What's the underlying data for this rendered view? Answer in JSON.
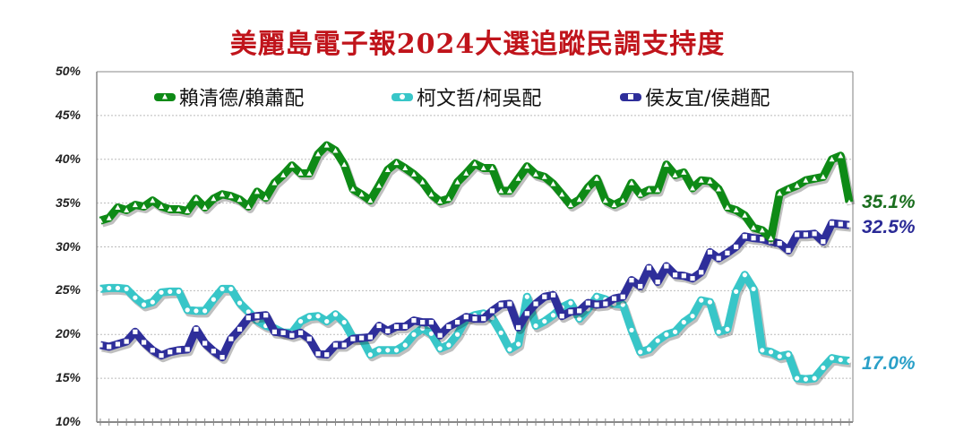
{
  "title": "美麗島電子報2024大選追蹤民調支持度",
  "legend": [
    {
      "label": "賴清德/賴蕭配",
      "color": "#0e8a16",
      "marker": "triangle"
    },
    {
      "label": "柯文哲/柯吳配",
      "color": "#38c6c8",
      "marker": "circle"
    },
    {
      "label": "侯友宜/侯趙配",
      "color": "#2e2e9a",
      "marker": "square"
    }
  ],
  "end_labels": {
    "lai": "35.1%",
    "ko": "17.0%",
    "hou": "32.5%"
  },
  "y_ticks": [
    "50%",
    "45%",
    "40%",
    "35%",
    "30%",
    "25%",
    "20%",
    "15%",
    "10%"
  ],
  "chart_data": {
    "type": "line",
    "title": "美麗島電子報2024大選追蹤民調支持度",
    "xlabel": "",
    "ylabel": "",
    "ylim": [
      10,
      50
    ],
    "y_ticks": [
      10,
      15,
      20,
      25,
      30,
      35,
      40,
      45,
      50
    ],
    "grid": true,
    "legend_position": "top",
    "x_count": 87,
    "series": [
      {
        "name": "賴清德/賴蕭配",
        "color": "#0e8a16",
        "values": [
          33.0,
          33.3,
          34.5,
          34.2,
          34.8,
          34.6,
          35.3,
          34.6,
          34.3,
          34.3,
          34.1,
          35.5,
          34.5,
          35.5,
          36.0,
          35.8,
          35.4,
          34.6,
          36.3,
          35.6,
          37.3,
          38.2,
          39.3,
          38.4,
          38.4,
          40.6,
          41.6,
          41.0,
          39.4,
          36.6,
          36.0,
          35.3,
          37.0,
          38.8,
          39.6,
          39.0,
          38.3,
          37.4,
          36.0,
          35.2,
          35.5,
          37.4,
          38.4,
          39.5,
          39.0,
          39.0,
          36.4,
          36.4,
          37.8,
          39.2,
          38.3,
          38.0,
          37.2,
          36.0,
          34.8,
          35.4,
          36.8,
          37.8,
          35.3,
          34.8,
          35.3,
          37.3,
          36.0,
          36.5,
          36.5,
          39.4,
          38.2,
          38.5,
          36.7,
          37.6,
          37.5,
          36.6,
          34.5,
          34.2,
          33.6,
          32.2,
          31.9,
          31.0,
          36.1,
          36.6,
          37.0,
          37.6,
          37.8,
          38.0,
          40.0,
          40.4,
          35.1
        ]
      },
      {
        "name": "柯文哲/柯吳配",
        "color": "#38c6c8",
        "values": [
          25.2,
          25.3,
          25.3,
          25.2,
          24.2,
          23.4,
          23.7,
          24.8,
          24.9,
          24.9,
          22.8,
          22.7,
          22.7,
          24.0,
          25.2,
          25.2,
          23.6,
          22.6,
          21.6,
          21.0,
          20.7,
          20.2,
          20.2,
          21.5,
          22.0,
          22.1,
          21.5,
          22.3,
          21.4,
          19.6,
          19.6,
          17.7,
          18.2,
          18.2,
          18.2,
          18.8,
          20.0,
          20.7,
          20.1,
          18.4,
          18.8,
          20.0,
          21.8,
          22.2,
          22.4,
          21.9,
          20.2,
          18.3,
          18.9,
          24.3,
          21.0,
          21.5,
          22.2,
          23.1,
          23.6,
          21.8,
          22.9,
          24.3,
          24.0,
          23.5,
          23.4,
          20.5,
          18.0,
          18.3,
          19.3,
          20.0,
          20.3,
          21.4,
          22.1,
          23.9,
          23.7,
          20.3,
          20.6,
          24.9,
          26.8,
          25.2,
          18.2,
          18.0,
          17.5,
          17.7,
          15.0,
          14.9,
          15.0,
          16.2,
          17.3,
          17.1,
          17.0
        ]
      },
      {
        "name": "侯友宜/侯趙配",
        "color": "#2e2e9a",
        "values": [
          18.8,
          18.6,
          18.9,
          19.2,
          20.3,
          19.1,
          18.2,
          17.6,
          18.0,
          18.2,
          18.3,
          20.6,
          19.0,
          18.1,
          17.4,
          19.5,
          20.6,
          21.9,
          22.1,
          22.2,
          20.3,
          20.2,
          19.9,
          20.2,
          19.5,
          17.8,
          17.7,
          18.8,
          18.8,
          19.5,
          19.6,
          19.7,
          21.0,
          20.4,
          20.9,
          20.9,
          21.6,
          21.4,
          21.4,
          19.9,
          20.9,
          21.4,
          22.0,
          21.8,
          21.8,
          22.7,
          23.4,
          23.5,
          20.8,
          22.4,
          23.5,
          24.3,
          24.5,
          22.1,
          22.6,
          22.7,
          23.6,
          23.4,
          23.5,
          24.1,
          24.3,
          26.2,
          25.5,
          27.6,
          26.0,
          27.8,
          26.8,
          26.7,
          26.4,
          27.1,
          29.4,
          28.7,
          29.3,
          30.0,
          31.2,
          31.0,
          30.9,
          30.6,
          30.4,
          29.6,
          31.4,
          31.4,
          31.5,
          30.6,
          32.7,
          32.6,
          32.5
        ]
      }
    ]
  }
}
